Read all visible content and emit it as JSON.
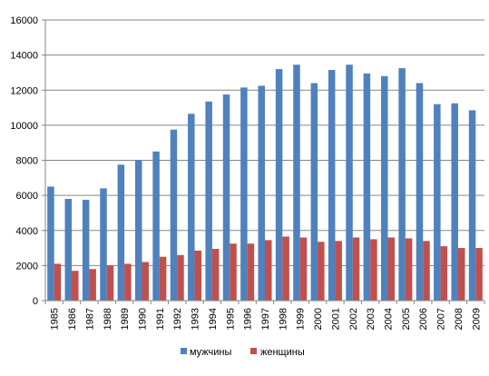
{
  "chart_data": {
    "type": "bar",
    "categories": [
      "1985",
      "1986",
      "1987",
      "1988",
      "1989",
      "1990",
      "1991",
      "1992",
      "1993",
      "1994",
      "1995",
      "1996",
      "1997",
      "1998",
      "1999",
      "2000",
      "2001",
      "2002",
      "2003",
      "2004",
      "2005",
      "2006",
      "2007",
      "2008",
      "2009"
    ],
    "series": [
      {
        "name": "мужчины",
        "color": "#4F81BD",
        "values": [
          6500,
          5800,
          5750,
          6400,
          7750,
          8000,
          8500,
          9750,
          10650,
          11350,
          11750,
          12150,
          12250,
          13200,
          13450,
          12400,
          13150,
          13450,
          12950,
          12800,
          13250,
          12400,
          11200,
          11250,
          10850
        ]
      },
      {
        "name": "женщины",
        "color": "#C0504D",
        "values": [
          2100,
          1700,
          1800,
          2000,
          2100,
          2200,
          2500,
          2600,
          2850,
          2950,
          3250,
          3250,
          3450,
          3650,
          3600,
          3350,
          3400,
          3600,
          3500,
          3600,
          3550,
          3400,
          3100,
          3000,
          3000
        ]
      }
    ],
    "ylim": [
      0,
      16000
    ],
    "yticks": [
      "0",
      "2000",
      "4000",
      "6000",
      "8000",
      "10000",
      "12000",
      "14000",
      "16000"
    ],
    "grid": true,
    "legend_position": "bottom",
    "title": "",
    "xlabel": "",
    "ylabel": ""
  }
}
